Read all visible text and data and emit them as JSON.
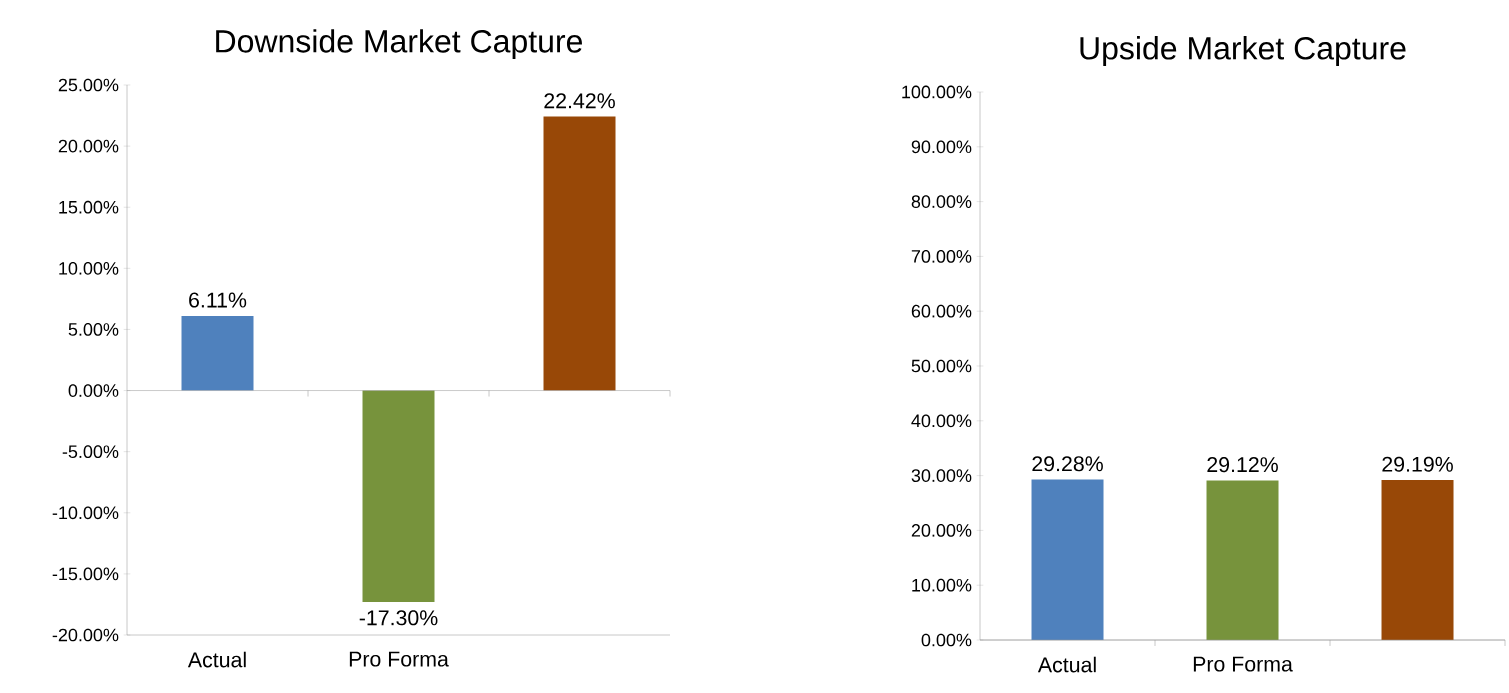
{
  "chart_data": [
    {
      "type": "bar",
      "title": "Downside Market Capture",
      "categories": [
        "Actual",
        "Pro Forma",
        null
      ],
      "values": [
        6.11,
        -17.3,
        22.42
      ],
      "colors": [
        "#4f81bd",
        "#77933c",
        "#984807"
      ],
      "value_labels": [
        "6.11%",
        "-17.30%",
        "22.42%"
      ],
      "ylim": [
        -20,
        25
      ],
      "yticks": [
        {
          "value": -20,
          "label": "-20.00%"
        },
        {
          "value": -15,
          "label": "-15.00%"
        },
        {
          "value": -10,
          "label": "-10.00%"
        },
        {
          "value": -5,
          "label": "-5.00%"
        },
        {
          "value": 0,
          "label": "0.00%"
        },
        {
          "value": 5,
          "label": "5.00%"
        },
        {
          "value": 10,
          "label": "10.00%"
        },
        {
          "value": 15,
          "label": "15.00%"
        },
        {
          "value": 20,
          "label": "20.00%"
        },
        {
          "value": 25,
          "label": "25.00%"
        }
      ]
    },
    {
      "type": "bar",
      "title": "Upside Market Capture",
      "categories": [
        "Actual",
        "Pro Forma",
        null
      ],
      "values": [
        29.28,
        29.12,
        29.19
      ],
      "colors": [
        "#4f81bd",
        "#77933c",
        "#984807"
      ],
      "value_labels": [
        "29.28%",
        "29.12%",
        "29.19%"
      ],
      "ylim": [
        0,
        100
      ],
      "yticks": [
        {
          "value": 0,
          "label": "0.00%"
        },
        {
          "value": 10,
          "label": "10.00%"
        },
        {
          "value": 20,
          "label": "20.00%"
        },
        {
          "value": 30,
          "label": "30.00%"
        },
        {
          "value": 40,
          "label": "40.00%"
        },
        {
          "value": 50,
          "label": "50.00%"
        },
        {
          "value": 60,
          "label": "60.00%"
        },
        {
          "value": 70,
          "label": "70.00%"
        },
        {
          "value": 80,
          "label": "80.00%"
        },
        {
          "value": 90,
          "label": "90.00%"
        },
        {
          "value": 100,
          "label": "100.00%"
        }
      ]
    }
  ]
}
